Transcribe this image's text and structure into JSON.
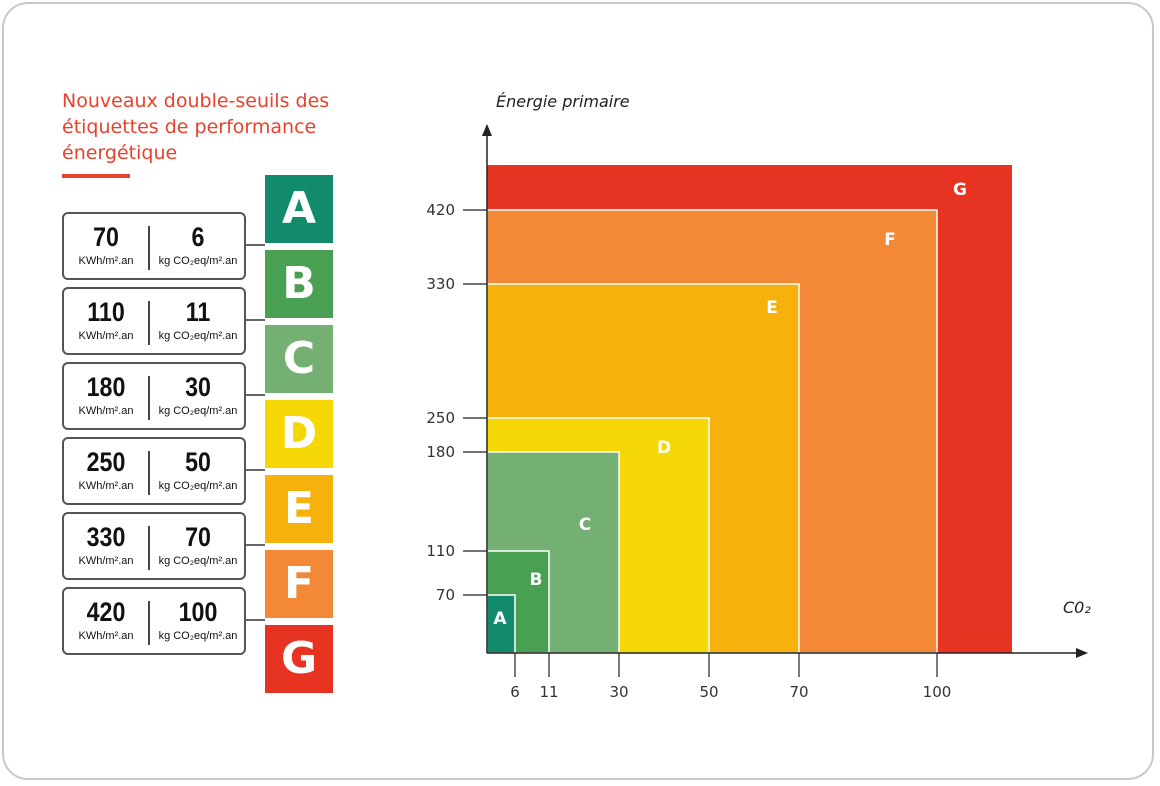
{
  "title": "Nouveaux double-seuils des étiquettes de performance énergétique",
  "thresholds": [
    {
      "energy": "70",
      "co2": "6"
    },
    {
      "energy": "110",
      "co2": "11"
    },
    {
      "energy": "180",
      "co2": "30"
    },
    {
      "energy": "250",
      "co2": "50"
    },
    {
      "energy": "330",
      "co2": "70"
    },
    {
      "energy": "420",
      "co2": "100"
    }
  ],
  "units": {
    "energy": "KWh/m².an",
    "co2": "kg CO₂eq/m².an"
  },
  "badges": [
    {
      "letter": "A",
      "color": "#128a6c"
    },
    {
      "letter": "B",
      "color": "#4aa052"
    },
    {
      "letter": "C",
      "color": "#74b071"
    },
    {
      "letter": "D",
      "color": "#f4d705"
    },
    {
      "letter": "E",
      "color": "#f6b10c"
    },
    {
      "letter": "F",
      "color": "#f38936"
    },
    {
      "letter": "G",
      "color": "#e63322"
    }
  ],
  "chart_data": {
    "type": "area",
    "ylabel": "Énergie primaire",
    "xlabel": "C0₂",
    "x_ticks": [
      "6",
      "11",
      "30",
      "50",
      "70",
      "100"
    ],
    "y_ticks": [
      "70",
      "110",
      "180",
      "250",
      "330",
      "420"
    ],
    "regions": [
      {
        "label": "A",
        "co2_max": 6,
        "energy_max": 70,
        "color": "#128a6c"
      },
      {
        "label": "B",
        "co2_max": 11,
        "energy_max": 110,
        "color": "#4aa052"
      },
      {
        "label": "C",
        "co2_max": 30,
        "energy_max": 180,
        "color": "#74b071"
      },
      {
        "label": "D",
        "co2_max": 50,
        "energy_max": 250,
        "color": "#f4d705"
      },
      {
        "label": "E",
        "co2_max": 70,
        "energy_max": 330,
        "color": "#f6b10c"
      },
      {
        "label": "F",
        "co2_max": 100,
        "energy_max": 420,
        "color": "#f38936"
      },
      {
        "label": "G",
        "co2_max": null,
        "energy_max": null,
        "color": "#e63322"
      }
    ]
  }
}
